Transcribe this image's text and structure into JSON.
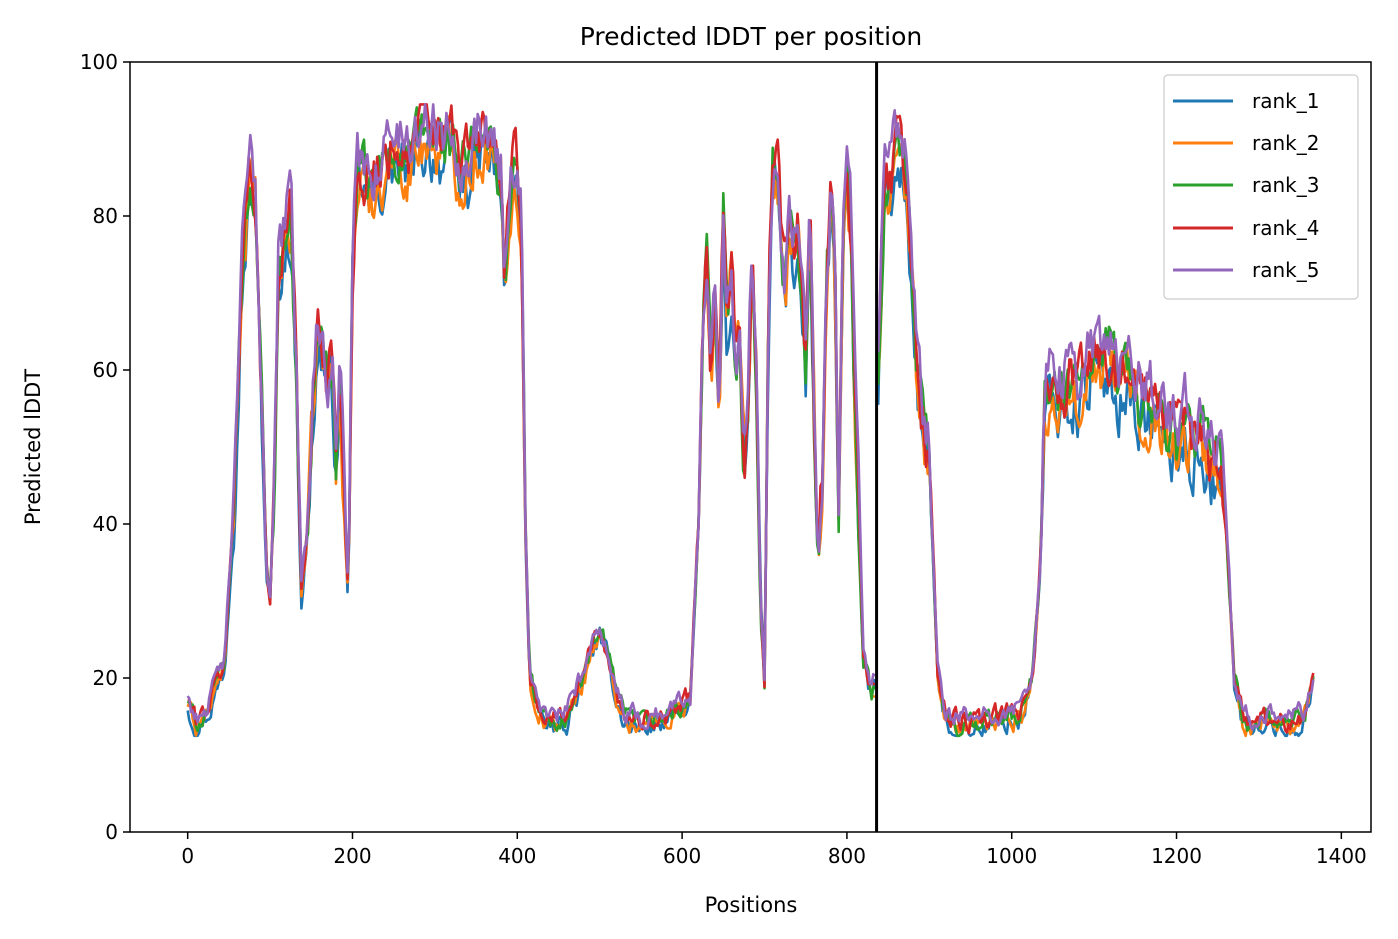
{
  "chart_data": {
    "type": "line",
    "title": "Predicted lDDT per position",
    "xlabel": "Positions",
    "ylabel": "Predicted lDDT",
    "xlim": [
      -70,
      1436
    ],
    "ylim": [
      0,
      100
    ],
    "xticks": [
      0,
      200,
      400,
      600,
      800,
      1000,
      1200,
      1400
    ],
    "yticks": [
      0,
      20,
      40,
      60,
      80,
      100
    ],
    "xtick_labels": [
      "0",
      "200",
      "400",
      "600",
      "800",
      "1000",
      "1200",
      "1400"
    ],
    "ytick_labels": [
      "0",
      "20",
      "40",
      "60",
      "80",
      "100"
    ],
    "vline": 836,
    "legend_position": "top-right",
    "grid": false,
    "breakpoints_x": [
      0,
      10,
      25,
      45,
      55,
      65,
      75,
      82,
      90,
      95,
      100,
      105,
      110,
      118,
      125,
      132,
      138,
      145,
      152,
      158,
      165,
      170,
      175,
      180,
      185,
      190,
      195,
      200,
      205,
      212,
      220,
      230,
      240,
      250,
      260,
      270,
      280,
      290,
      300,
      310,
      320,
      330,
      340,
      350,
      360,
      370,
      380,
      385,
      390,
      395,
      400,
      405,
      410,
      415,
      425,
      440,
      460,
      480,
      490,
      500,
      510,
      520,
      530,
      550,
      580,
      610,
      620,
      625,
      630,
      635,
      640,
      645,
      650,
      655,
      660,
      665,
      670,
      675,
      680,
      685,
      690,
      695,
      700,
      705,
      710,
      715,
      720,
      725,
      730,
      735,
      740,
      745,
      750,
      755,
      760,
      765,
      770,
      775,
      780,
      785,
      790,
      795,
      800,
      805,
      810,
      815,
      820,
      830,
      836,
      838,
      845,
      850,
      855,
      860,
      865,
      870,
      875,
      880,
      885,
      890,
      895,
      900,
      905,
      910,
      920,
      935,
      960,
      990,
      1010,
      1025,
      1035,
      1040,
      1045,
      1050,
      1060,
      1070,
      1080,
      1090,
      1100,
      1110,
      1120,
      1130,
      1140,
      1150,
      1160,
      1170,
      1180,
      1190,
      1200,
      1210,
      1220,
      1230,
      1240,
      1250,
      1255,
      1260,
      1265,
      1270,
      1280,
      1290,
      1300,
      1320,
      1340,
      1355,
      1362,
      1367
    ],
    "baseline": [
      17,
      14,
      16,
      22,
      40,
      72,
      85,
      83,
      55,
      35,
      30,
      45,
      72,
      78,
      80,
      60,
      32,
      38,
      55,
      65,
      63,
      58,
      62,
      48,
      60,
      42,
      30,
      72,
      84,
      86,
      83,
      85,
      87,
      89,
      88,
      87,
      90,
      91,
      90,
      89,
      90,
      86,
      87,
      89,
      90,
      88,
      85,
      70,
      82,
      85,
      84,
      80,
      40,
      20,
      16,
      14,
      15,
      20,
      24,
      26,
      23,
      18,
      15,
      14,
      15,
      17,
      40,
      65,
      75,
      60,
      70,
      55,
      80,
      65,
      72,
      60,
      65,
      48,
      55,
      75,
      60,
      30,
      20,
      70,
      85,
      87,
      78,
      70,
      80,
      75,
      78,
      70,
      60,
      80,
      55,
      35,
      45,
      70,
      82,
      75,
      40,
      75,
      85,
      78,
      55,
      40,
      22,
      18,
      20,
      60,
      82,
      84,
      85,
      88,
      87,
      85,
      80,
      70,
      60,
      55,
      50,
      48,
      35,
      20,
      15,
      14,
      14,
      15,
      15,
      20,
      35,
      55,
      58,
      57,
      56,
      58,
      57,
      60,
      62,
      60,
      62,
      58,
      61,
      57,
      55,
      56,
      54,
      52,
      50,
      53,
      50,
      52,
      48,
      48,
      45,
      40,
      30,
      20,
      15,
      14,
      15,
      14,
      14,
      15,
      18,
      20
    ]
  },
  "legend": {
    "series": [
      {
        "name": "rank_1",
        "color": "#1f77b4"
      },
      {
        "name": "rank_2",
        "color": "#ff7f0e"
      },
      {
        "name": "rank_3",
        "color": "#2ca02c"
      },
      {
        "name": "rank_4",
        "color": "#d62728"
      },
      {
        "name": "rank_5",
        "color": "#9467bd"
      }
    ]
  }
}
